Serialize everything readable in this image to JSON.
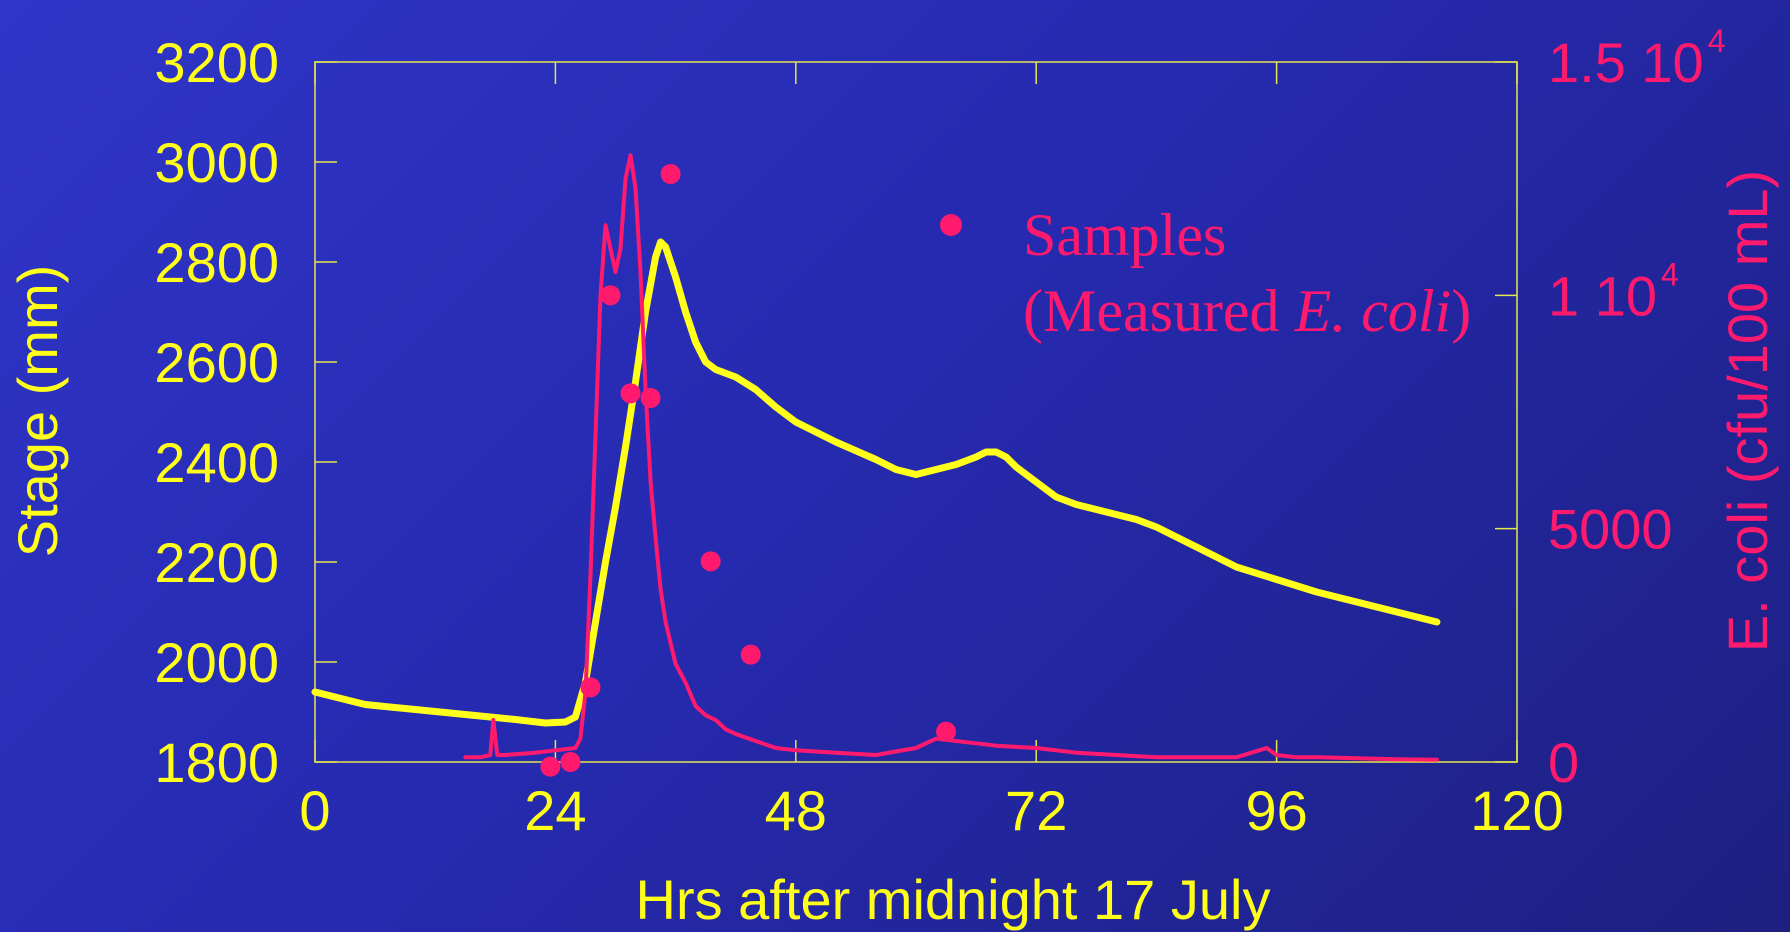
{
  "colors": {
    "stage": "#ffff1a",
    "ecoli": "#ff1a6e",
    "frame": "#e6e64d"
  },
  "chart_data": {
    "type": "line",
    "x": {
      "label": "Hrs after midnight 17 July",
      "range": [
        0,
        120
      ],
      "ticks": [
        0,
        24,
        48,
        72,
        96,
        120
      ],
      "tick_labels": [
        "0",
        "24",
        "48",
        "72",
        "96",
        "120"
      ]
    },
    "y_left": {
      "label": "Stage (mm)",
      "range": [
        1800,
        3200
      ],
      "ticks": [
        1800,
        2000,
        2200,
        2400,
        2600,
        2800,
        3000,
        3200
      ],
      "tick_labels": [
        "1800",
        "2000",
        "2200",
        "2400",
        "2600",
        "2800",
        "3000",
        "3200"
      ]
    },
    "y_right": {
      "label": "E. coli (cfu/100 mL)",
      "range": [
        0,
        15000
      ],
      "ticks": [
        0,
        5000,
        10000,
        15000
      ],
      "tick_labels": [
        {
          "base": "0",
          "sup": ""
        },
        {
          "base": "5000",
          "sup": ""
        },
        {
          "base": "1 10",
          "sup": "4"
        },
        {
          "base": "1.5 10",
          "sup": "4"
        }
      ]
    },
    "legend": {
      "position": "top-right",
      "line1": "Samples",
      "line2_prefix": "(Measured ",
      "line2_italic": "E. coli",
      "line2_suffix": ")"
    },
    "series": [
      {
        "axis": "left",
        "style": "line",
        "x": [
          0,
          2,
          5,
          10,
          15,
          20,
          23,
          25,
          26,
          27,
          28,
          29,
          30,
          31,
          32,
          33,
          34,
          34.5,
          35,
          36,
          37,
          38,
          39,
          40,
          42,
          44,
          46,
          48,
          52,
          56,
          58,
          60,
          62,
          64,
          66,
          67,
          68,
          69,
          70,
          72,
          74,
          76,
          78,
          80,
          82,
          84,
          88,
          92,
          96,
          100,
          104,
          108,
          112
        ],
        "y": [
          1940,
          1930,
          1915,
          1905,
          1895,
          1885,
          1878,
          1880,
          1890,
          1960,
          2080,
          2200,
          2310,
          2430,
          2560,
          2700,
          2810,
          2840,
          2830,
          2770,
          2700,
          2640,
          2600,
          2585,
          2570,
          2545,
          2510,
          2480,
          2440,
          2405,
          2385,
          2375,
          2385,
          2395,
          2410,
          2420,
          2420,
          2410,
          2390,
          2360,
          2330,
          2315,
          2305,
          2295,
          2285,
          2270,
          2230,
          2190,
          2165,
          2140,
          2120,
          2100,
          2080
        ]
      },
      {
        "axis": "right",
        "style": "line",
        "x": [
          15,
          16.5,
          17.5,
          17.8,
          18.2,
          19,
          22,
          24,
          26,
          26.5,
          27,
          27.5,
          28,
          28.5,
          29,
          29.5,
          30,
          30.5,
          31,
          31.5,
          32,
          32.5,
          33,
          33.5,
          34,
          34.5,
          35,
          36,
          37,
          38,
          39,
          40,
          41,
          42,
          44,
          46,
          48,
          52,
          56,
          60,
          62,
          64,
          66,
          68,
          72,
          76,
          80,
          84,
          88,
          92,
          95,
          96,
          98,
          100,
          104,
          108,
          112
        ],
        "y": [
          100,
          100,
          150,
          900,
          150,
          150,
          200,
          250,
          300,
          500,
          1500,
          4000,
          7000,
          10000,
          11500,
          11000,
          10500,
          11000,
          12500,
          13000,
          12300,
          10500,
          8000,
          6000,
          4800,
          3700,
          3000,
          2100,
          1700,
          1200,
          1000,
          900,
          700,
          600,
          450,
          300,
          250,
          200,
          150,
          300,
          500,
          450,
          400,
          350,
          300,
          200,
          150,
          100,
          100,
          100,
          300,
          150,
          100,
          100,
          80,
          60,
          50
        ]
      },
      {
        "axis": "right",
        "style": "points",
        "name": "Samples (Measured E. coli)",
        "x": [
          23.5,
          25.5,
          27.5,
          29.5,
          31.5,
          33.5,
          35.5,
          39.5,
          43.5,
          63
        ],
        "y": [
          -100,
          0,
          1600,
          10000,
          7900,
          7800,
          12600,
          4300,
          2300,
          650
        ]
      }
    ]
  }
}
